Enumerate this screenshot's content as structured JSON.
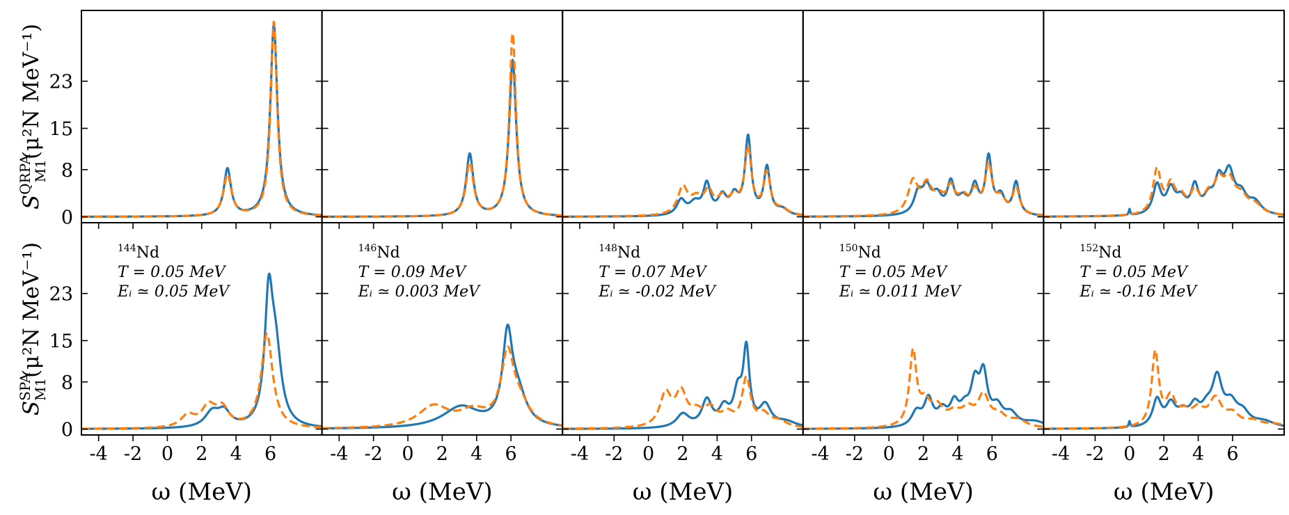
{
  "chart_data": {
    "type": "line",
    "layout": "2 rows x 5 columns",
    "xlabel": "ω (MeV)",
    "xlim": [
      -5.0,
      9.0
    ],
    "xticks": [
      -4,
      -2,
      0,
      2,
      4,
      6
    ],
    "xtick_labels": [
      "-4",
      "-2",
      "0",
      "2",
      "4",
      "6"
    ],
    "ylim": [
      -1.0,
      35.0
    ],
    "yticks": [
      0,
      8,
      15,
      23
    ],
    "ytick_labels": [
      "0",
      "8",
      "15",
      "23"
    ],
    "colors": {
      "solid": "#1f77b4",
      "dashed": "#ff7f0e"
    },
    "rows": [
      {
        "ylabel_main": "S",
        "ylabel_sup": "QRPA",
        "ylabel_sub": "M1",
        "ylabel_units": "(μ²N MeV⁻¹)"
      },
      {
        "ylabel_main": "S",
        "ylabel_sup": "SPA",
        "ylabel_sub": "M1",
        "ylabel_units": "(μ²N MeV⁻¹)"
      }
    ],
    "panels": [
      {
        "nucleus": "Nd",
        "mass": "144",
        "T_label": "T = 0.05 MeV",
        "Ei_label": "Eᵢ ≃ 0.05 MeV",
        "qrpa": {
          "solid": {
            "peaks": [
              [
                3.5,
                8.0,
                0.25
              ],
              [
                6.2,
                32.5,
                0.25
              ]
            ]
          },
          "dashed": {
            "peaks": [
              [
                3.5,
                7.0,
                0.28
              ],
              [
                6.2,
                33.0,
                0.23
              ]
            ]
          }
        },
        "spa": {
          "solid": {
            "peaks": [
              [
                2.6,
                2.5,
                0.5
              ],
              [
                3.3,
                2.5,
                0.45
              ],
              [
                5.9,
                20.0,
                0.28
              ],
              [
                6.3,
                12.0,
                0.4
              ]
            ]
          },
          "dashed": {
            "peaks": [
              [
                1.2,
                2.0,
                0.5
              ],
              [
                2.4,
                3.4,
                0.5
              ],
              [
                3.2,
                3.0,
                0.45
              ],
              [
                5.8,
                16.0,
                0.4
              ]
            ]
          }
        }
      },
      {
        "nucleus": "Nd",
        "mass": "146",
        "T_label": "T = 0.09 MeV",
        "Ei_label": "Eᵢ ≃ 0.003 MeV",
        "qrpa": {
          "solid": {
            "peaks": [
              [
                3.6,
                10.5,
                0.25
              ],
              [
                6.1,
                26.5,
                0.25
              ]
            ]
          },
          "dashed": {
            "peaks": [
              [
                3.6,
                9.0,
                0.27
              ],
              [
                6.1,
                31.0,
                0.23
              ]
            ]
          }
        },
        "spa": {
          "solid": {
            "peaks": [
              [
                3.1,
                3.6,
                1.3
              ],
              [
                5.8,
                14.5,
                0.35
              ],
              [
                6.4,
                5.0,
                0.6
              ]
            ]
          },
          "dashed": {
            "peaks": [
              [
                1.5,
                3.6,
                1.1
              ],
              [
                3.8,
                2.5,
                1.0
              ],
              [
                5.8,
                11.5,
                0.45
              ],
              [
                6.5,
                3.5,
                0.7
              ]
            ]
          }
        }
      },
      {
        "nucleus": "Nd",
        "mass": "148",
        "T_label": "T = 0.07 MeV",
        "Ei_label": "Eᵢ ≃ -0.02 MeV",
        "qrpa": {
          "solid": {
            "peaks": [
              [
                1.9,
                2.5,
                0.3
              ],
              [
                2.7,
                2.0,
                0.4
              ],
              [
                3.4,
                5.0,
                0.25
              ],
              [
                4.3,
                3.0,
                0.3
              ],
              [
                5.0,
                3.0,
                0.3
              ],
              [
                5.8,
                13.0,
                0.22
              ],
              [
                6.9,
                8.0,
                0.22
              ],
              [
                7.8,
                1.0,
                0.4
              ]
            ]
          },
          "dashed": {
            "peaks": [
              [
                2.0,
                4.5,
                0.35
              ],
              [
                2.8,
                2.5,
                0.45
              ],
              [
                3.5,
                3.5,
                0.3
              ],
              [
                4.3,
                2.5,
                0.35
              ],
              [
                5.0,
                2.5,
                0.35
              ],
              [
                5.8,
                11.0,
                0.25
              ],
              [
                6.9,
                7.0,
                0.25
              ],
              [
                7.8,
                1.0,
                0.4
              ]
            ]
          }
        },
        "spa": {
          "solid": {
            "peaks": [
              [
                2.0,
                2.3,
                0.45
              ],
              [
                3.4,
                4.5,
                0.35
              ],
              [
                4.4,
                3.0,
                0.35
              ],
              [
                5.2,
                5.5,
                0.3
              ],
              [
                5.7,
                12.5,
                0.22
              ],
              [
                6.8,
                3.5,
                0.4
              ],
              [
                8.0,
                1.0,
                0.8
              ]
            ]
          },
          "dashed": {
            "peaks": [
              [
                1.0,
                5.5,
                0.4
              ],
              [
                1.9,
                5.5,
                0.4
              ],
              [
                2.8,
                2.0,
                0.45
              ],
              [
                3.6,
                2.8,
                0.45
              ],
              [
                4.6,
                2.0,
                0.45
              ],
              [
                5.7,
                8.0,
                0.3
              ],
              [
                6.7,
                2.0,
                0.45
              ],
              [
                7.6,
                1.0,
                0.6
              ]
            ]
          }
        }
      },
      {
        "nucleus": "Nd",
        "mass": "150",
        "T_label": "T = 0.05 MeV",
        "Ei_label": "Eᵢ ≃ 0.011 MeV",
        "qrpa": {
          "solid": {
            "peaks": [
              [
                1.7,
                3.5,
                0.3
              ],
              [
                2.2,
                4.0,
                0.3
              ],
              [
                2.8,
                3.0,
                0.35
              ],
              [
                3.6,
                5.0,
                0.25
              ],
              [
                4.3,
                2.5,
                0.35
              ],
              [
                5.0,
                4.5,
                0.25
              ],
              [
                5.8,
                9.5,
                0.22
              ],
              [
                6.5,
                3.0,
                0.3
              ],
              [
                7.4,
                5.5,
                0.22
              ]
            ]
          },
          "dashed": {
            "peaks": [
              [
                1.4,
                5.5,
                0.35
              ],
              [
                2.2,
                4.5,
                0.35
              ],
              [
                2.9,
                2.5,
                0.4
              ],
              [
                3.6,
                4.0,
                0.3
              ],
              [
                4.3,
                2.5,
                0.35
              ],
              [
                5.0,
                3.5,
                0.3
              ],
              [
                5.8,
                8.0,
                0.25
              ],
              [
                6.5,
                2.5,
                0.35
              ],
              [
                7.4,
                4.5,
                0.25
              ]
            ]
          }
        },
        "spa": {
          "solid": {
            "peaks": [
              [
                1.6,
                2.5,
                0.35
              ],
              [
                2.3,
                4.5,
                0.3
              ],
              [
                3.1,
                2.5,
                0.35
              ],
              [
                3.8,
                3.5,
                0.3
              ],
              [
                4.4,
                2.5,
                0.35
              ],
              [
                5.0,
                6.5,
                0.3
              ],
              [
                5.5,
                8.0,
                0.28
              ],
              [
                6.3,
                3.0,
                0.4
              ],
              [
                7.1,
                2.0,
                0.45
              ],
              [
                8.5,
                1.0,
                0.8
              ]
            ]
          },
          "dashed": {
            "peaks": [
              [
                1.4,
                12.5,
                0.25
              ],
              [
                2.1,
                3.5,
                0.35
              ],
              [
                2.8,
                3.0,
                0.45
              ],
              [
                3.8,
                2.0,
                0.5
              ],
              [
                4.6,
                2.5,
                0.45
              ],
              [
                5.5,
                5.0,
                0.4
              ],
              [
                6.4,
                1.8,
                0.5
              ],
              [
                7.5,
                1.2,
                0.6
              ]
            ]
          }
        }
      },
      {
        "nucleus": "Nd",
        "mass": "152",
        "T_label": "T = 0.05 MeV",
        "Ei_label": "Eᵢ ≃ -0.16 MeV",
        "qrpa": {
          "solid": {
            "peaks": [
              [
                0.0,
                1.0,
                0.05
              ],
              [
                1.6,
                5.0,
                0.28
              ],
              [
                2.4,
                4.0,
                0.3
              ],
              [
                3.0,
                2.5,
                0.35
              ],
              [
                3.8,
                4.5,
                0.25
              ],
              [
                4.6,
                2.5,
                0.35
              ],
              [
                5.2,
                5.0,
                0.3
              ],
              [
                5.8,
                6.5,
                0.35
              ],
              [
                6.5,
                3.0,
                0.4
              ],
              [
                7.3,
                2.0,
                0.45
              ]
            ]
          },
          "dashed": {
            "peaks": [
              [
                1.6,
                7.5,
                0.28
              ],
              [
                2.4,
                4.5,
                0.3
              ],
              [
                3.0,
                2.5,
                0.35
              ],
              [
                3.8,
                3.5,
                0.3
              ],
              [
                4.6,
                2.5,
                0.35
              ],
              [
                5.2,
                4.5,
                0.35
              ],
              [
                5.8,
                5.0,
                0.4
              ],
              [
                6.5,
                2.5,
                0.45
              ],
              [
                7.3,
                1.5,
                0.5
              ]
            ]
          }
        },
        "spa": {
          "solid": {
            "peaks": [
              [
                0.0,
                1.0,
                0.05
              ],
              [
                1.6,
                4.5,
                0.3
              ],
              [
                2.4,
                3.5,
                0.35
              ],
              [
                3.1,
                2.0,
                0.4
              ],
              [
                3.8,
                3.0,
                0.35
              ],
              [
                4.5,
                2.5,
                0.4
              ],
              [
                5.1,
                7.5,
                0.35
              ],
              [
                5.9,
                3.5,
                0.45
              ],
              [
                6.6,
                2.0,
                0.45
              ],
              [
                7.8,
                1.0,
                0.8
              ]
            ]
          },
          "dashed": {
            "peaks": [
              [
                1.5,
                12.5,
                0.25
              ],
              [
                2.4,
                4.5,
                0.35
              ],
              [
                3.2,
                2.0,
                0.45
              ],
              [
                4.0,
                2.5,
                0.45
              ],
              [
                5.0,
                4.5,
                0.45
              ],
              [
                6.0,
                2.0,
                0.5
              ],
              [
                7.2,
                1.0,
                0.6
              ],
              [
                8.5,
                0.6,
                0.8
              ]
            ]
          }
        }
      }
    ]
  }
}
